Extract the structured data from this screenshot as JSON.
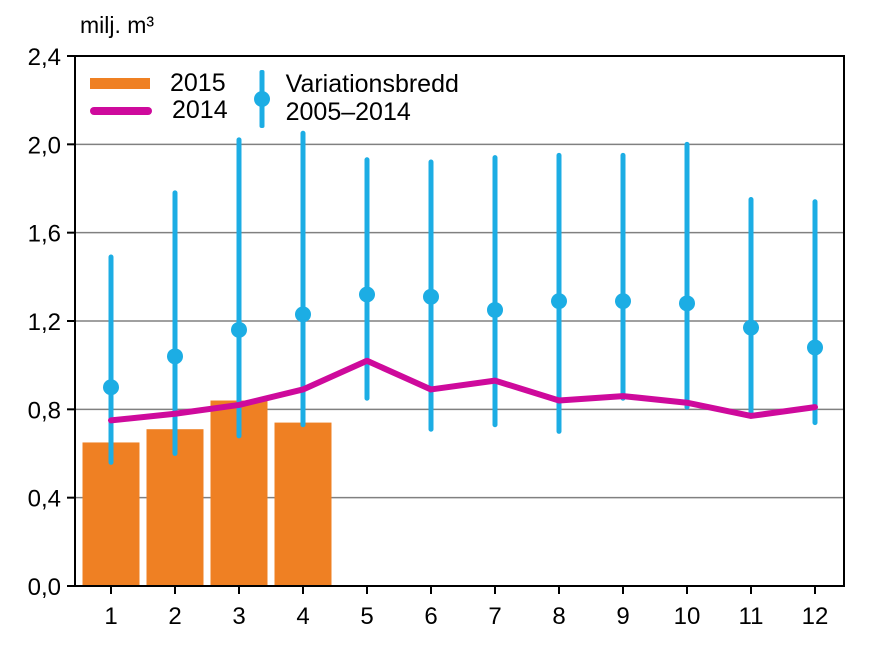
{
  "title": "milj. m³",
  "legend": {
    "bar_label": "2015",
    "line_label": "2014",
    "variation_line1": "Variationsbredd",
    "variation_line2": "2005–2014"
  },
  "colors": {
    "bar": "#EF8023",
    "line": "#CE0A9C",
    "variation": "#1CADE4",
    "grid": "#808080",
    "axis": "#000000",
    "text": "#000000",
    "background": "#FFFFFF"
  },
  "chart_data": {
    "type": "combo",
    "title": "milj. m³",
    "xlabel": "",
    "ylabel": "milj. m³",
    "categories": [
      "1",
      "2",
      "3",
      "4",
      "5",
      "6",
      "7",
      "8",
      "9",
      "10",
      "11",
      "12"
    ],
    "ylim": [
      0,
      2.4
    ],
    "yticks": {
      "values": [
        0,
        0.4,
        0.8,
        1.2,
        1.6,
        2.0,
        2.4
      ],
      "labels": [
        "0,0",
        "0,4",
        "0,8",
        "1,2",
        "1,6",
        "2,0",
        "2,4"
      ]
    },
    "grid": true,
    "legend_position": "top-left-inside",
    "series": [
      {
        "name": "2015",
        "type": "bar",
        "color": "#EF8023",
        "values": [
          0.65,
          0.71,
          0.84,
          0.74,
          null,
          null,
          null,
          null,
          null,
          null,
          null,
          null
        ]
      },
      {
        "name": "2014",
        "type": "line",
        "color": "#CE0A9C",
        "values": [
          0.75,
          0.78,
          0.82,
          0.89,
          1.02,
          0.89,
          0.93,
          0.84,
          0.86,
          0.83,
          0.77,
          0.81
        ]
      },
      {
        "name": "Variationsbredd 2005–2014",
        "type": "errorbar",
        "color": "#1CADE4",
        "low": [
          0.56,
          0.6,
          0.68,
          0.73,
          0.85,
          0.71,
          0.73,
          0.7,
          0.85,
          0.81,
          0.77,
          0.74
        ],
        "mid": [
          0.9,
          1.04,
          1.16,
          1.23,
          1.32,
          1.31,
          1.25,
          1.29,
          1.29,
          1.28,
          1.17,
          1.08
        ],
        "high": [
          1.49,
          1.78,
          2.02,
          2.05,
          1.93,
          1.92,
          1.94,
          1.95,
          1.95,
          2.0,
          1.75,
          1.74
        ]
      }
    ]
  }
}
